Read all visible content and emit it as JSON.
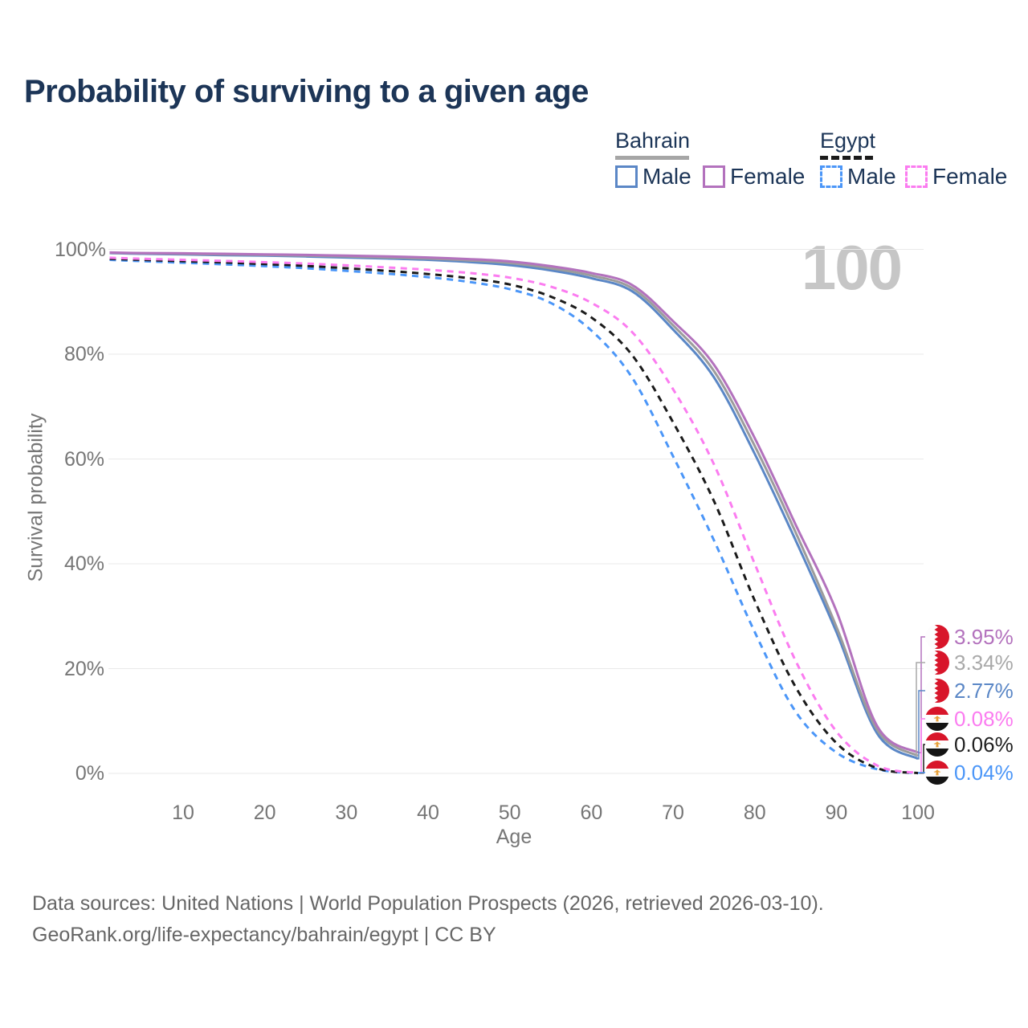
{
  "title": "Probability of surviving to a given age",
  "watermark": "100",
  "legend": {
    "groups": [
      {
        "label": "Bahrain",
        "line_style": "solid",
        "underline_color": "#a6a6a6",
        "items": [
          {
            "label": "Male",
            "color": "#5b87c6"
          },
          {
            "label": "Female",
            "color": "#b372bd"
          }
        ]
      },
      {
        "label": "Egypt",
        "line_style": "dashed",
        "underline_color": "#1b1b1b",
        "items": [
          {
            "label": "Male",
            "color": "#4b96f8"
          },
          {
            "label": "Female",
            "color": "#fb7cf0"
          }
        ]
      }
    ]
  },
  "chart_data": {
    "type": "line",
    "title": "Probability of surviving to a given age",
    "xlabel": "Age",
    "ylabel": "Survival probability",
    "xlim": [
      0,
      105
    ],
    "ylim": [
      0,
      100
    ],
    "grid": "horizontal",
    "legend_position": "top-right",
    "x_ticks": [
      {
        "value": 10,
        "label": "10"
      },
      {
        "value": 20,
        "label": "20"
      },
      {
        "value": 30,
        "label": "30"
      },
      {
        "value": 40,
        "label": "40"
      },
      {
        "value": 50,
        "label": "50"
      },
      {
        "value": 60,
        "label": "60"
      },
      {
        "value": 70,
        "label": "70"
      },
      {
        "value": 80,
        "label": "80"
      },
      {
        "value": 90,
        "label": "90"
      },
      {
        "value": 100,
        "label": "100"
      }
    ],
    "y_ticks": [
      {
        "value": 0,
        "label": "0%"
      },
      {
        "value": 20,
        "label": "20%"
      },
      {
        "value": 40,
        "label": "40%"
      },
      {
        "value": 60,
        "label": "60%"
      },
      {
        "value": 80,
        "label": "80%"
      },
      {
        "value": 100,
        "label": "100%"
      }
    ],
    "x": [
      1,
      5,
      10,
      15,
      20,
      25,
      30,
      35,
      40,
      45,
      50,
      55,
      60,
      65,
      70,
      75,
      80,
      85,
      90,
      95,
      100
    ],
    "series": [
      {
        "name": "Egypt Male",
        "country": "Egypt",
        "sex": "Male",
        "color": "#4b96f8",
        "dashed": true,
        "values": [
          98.0,
          97.75,
          97.45,
          97.15,
          96.8,
          96.4,
          95.9,
          95.35,
          94.7,
          93.8,
          92.4,
          89.8,
          84.5,
          75.5,
          60.5,
          44.5,
          27.0,
          11.8,
          4.0,
          0.8,
          0.04
        ]
      },
      {
        "name": "Egypt Both sexes",
        "country": "Egypt",
        "sex": "Both sexes",
        "color": "#1b1b1b",
        "dashed": true,
        "values": [
          98.2,
          98.0,
          97.75,
          97.5,
          97.2,
          96.85,
          96.4,
          95.9,
          95.3,
          94.5,
          93.3,
          91.0,
          87.0,
          79.8,
          67.0,
          52.0,
          33.0,
          16.5,
          5.8,
          1.0,
          0.06
        ]
      },
      {
        "name": "Egypt Female",
        "country": "Egypt",
        "sex": "Female",
        "color": "#fb7cf0",
        "dashed": true,
        "values": [
          98.4,
          98.2,
          98.0,
          97.8,
          97.55,
          97.3,
          96.95,
          96.55,
          96.1,
          95.5,
          94.6,
          92.9,
          89.8,
          84.2,
          73.3,
          59.0,
          40.0,
          21.5,
          8.0,
          1.5,
          0.08
        ]
      },
      {
        "name": "Bahrain Male",
        "country": "Bahrain",
        "sex": "Male",
        "color": "#5b87c6",
        "dashed": false,
        "values": [
          99.3,
          99.15,
          99.05,
          98.9,
          98.8,
          98.65,
          98.45,
          98.25,
          98.0,
          97.6,
          97.0,
          96.0,
          94.5,
          92.0,
          84.7,
          75.6,
          61.0,
          44.5,
          27.0,
          7.6,
          2.77
        ]
      },
      {
        "name": "Bahrain Both sexes",
        "country": "Bahrain",
        "sex": "Both sexes",
        "color": "#9c9c9c",
        "dashed": false,
        "values": [
          99.35,
          99.25,
          99.15,
          99.05,
          98.95,
          98.8,
          98.65,
          98.45,
          98.25,
          97.9,
          97.4,
          96.4,
          95.0,
          92.6,
          85.5,
          76.8,
          62.5,
          46.0,
          28.0,
          8.3,
          3.34
        ]
      },
      {
        "name": "Bahrain Female",
        "country": "Bahrain",
        "sex": "Female",
        "color": "#b372bd",
        "dashed": false,
        "values": [
          99.4,
          99.3,
          99.25,
          99.15,
          99.05,
          98.95,
          98.8,
          98.65,
          98.45,
          98.15,
          97.7,
          96.8,
          95.5,
          93.2,
          86.3,
          78.0,
          64.0,
          47.5,
          31.0,
          9.0,
          3.95
        ]
      }
    ],
    "end_labels": [
      {
        "text": "3.95%",
        "color": "#b372bd",
        "flag": "bahrain",
        "series": "Bahrain Female"
      },
      {
        "text": "3.34%",
        "color": "#a9a9a9",
        "flag": "bahrain",
        "series": "Bahrain Both sexes"
      },
      {
        "text": "2.77%",
        "color": "#5b87c6",
        "flag": "bahrain",
        "series": "Bahrain Male"
      },
      {
        "text": "0.08%",
        "color": "#fb7cf0",
        "flag": "egypt",
        "series": "Egypt Female"
      },
      {
        "text": "0.06%",
        "color": "#1f1f1f",
        "flag": "egypt",
        "series": "Egypt Both sexes"
      },
      {
        "text": "0.04%",
        "color": "#4b96f8",
        "flag": "egypt",
        "series": "Egypt Male"
      }
    ]
  },
  "footer": {
    "line1": "Data sources: United Nations | World Population Prospects (2026, retrieved 2026-03-10).",
    "line2": "GeoRank.org/life-expectancy/bahrain/egypt | CC BY"
  }
}
